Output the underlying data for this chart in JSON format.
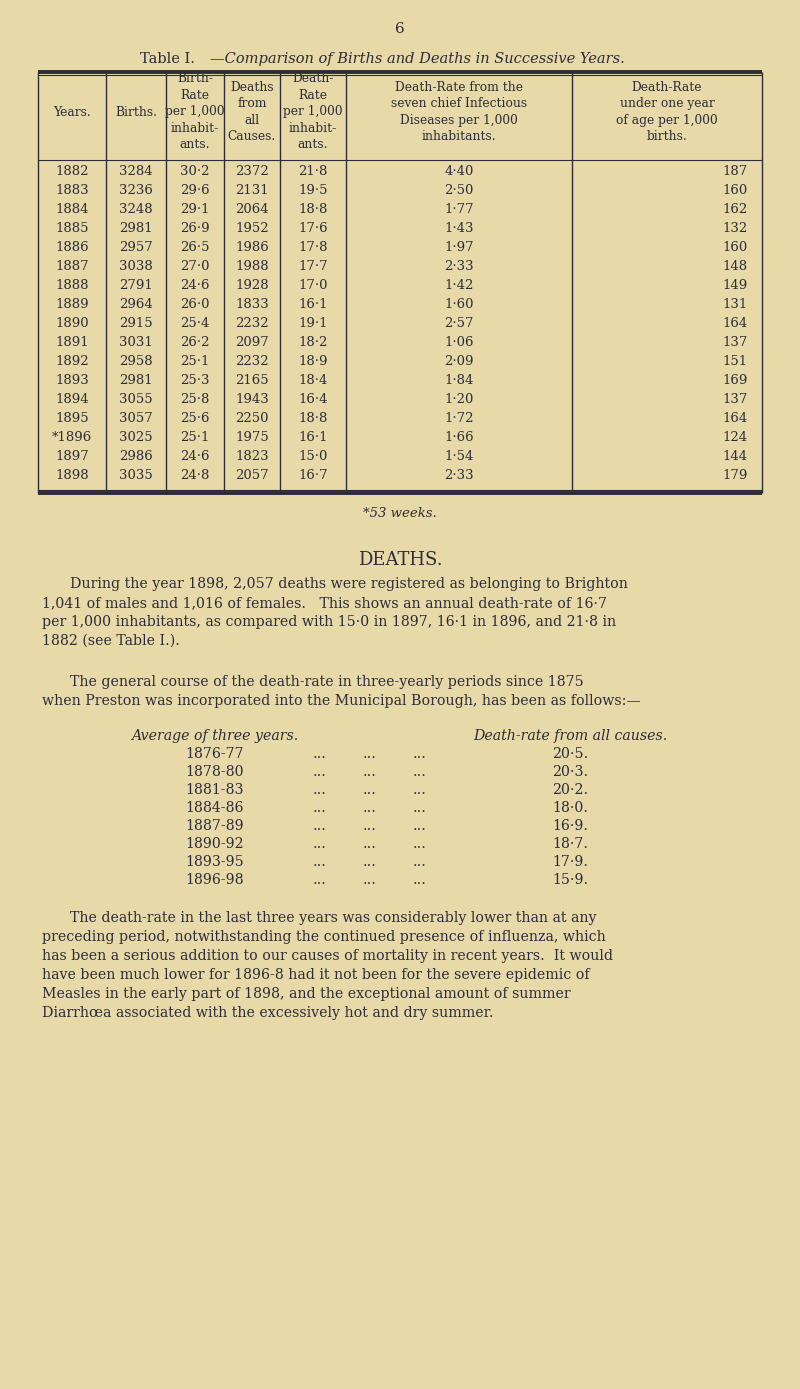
{
  "bg_color": "#e8d9a8",
  "text_color": "#2c2c3a",
  "page_number": "6",
  "table_title_roman": "Table I.",
  "table_title_italic": "—Comparison of Births and Deaths in Successive Years.",
  "col_headers": [
    "Years.",
    "Births.",
    "Birth-\nRate\nper 1,000\ninhabit-\nants.",
    "Deaths\nfrom\nall\nCauses.",
    "Death-\nRate\nper 1,000\ninhabit-\nants.",
    "Death-Rate from the\nseven chief Infectious\nDiseases per 1,000\ninhabitants.",
    "Death-Rate\nunder one year\nof age per 1,000\nbirths."
  ],
  "table_data": [
    [
      "1882",
      "3284",
      "30·2",
      "2372",
      "21·8",
      "4·40",
      "187"
    ],
    [
      "1883",
      "3236",
      "29·6",
      "2131",
      "19·5",
      "2·50",
      "160"
    ],
    [
      "1884",
      "3248",
      "29·1",
      "2064",
      "18·8",
      "1·77",
      "162"
    ],
    [
      "1885",
      "2981",
      "26·9",
      "1952",
      "17·6",
      "1·43",
      "132"
    ],
    [
      "1886",
      "2957",
      "26·5",
      "1986",
      "17·8",
      "1·97",
      "160"
    ],
    [
      "1887",
      "3038",
      "27·0",
      "1988",
      "17·7",
      "2·33",
      "148"
    ],
    [
      "1888",
      "2791",
      "24·6",
      "1928",
      "17·0",
      "1·42",
      "149"
    ],
    [
      "1889",
      "2964",
      "26·0",
      "1833",
      "16·1",
      "1·60",
      "131"
    ],
    [
      "1890",
      "2915",
      "25·4",
      "2232",
      "19·1",
      "2·57",
      "164"
    ],
    [
      "1891",
      "3031",
      "26·2",
      "2097",
      "18·2",
      "1·06",
      "137"
    ],
    [
      "1892",
      "2958",
      "25·1",
      "2232",
      "18·9",
      "2·09",
      "151"
    ],
    [
      "1893",
      "2981",
      "25·3",
      "2165",
      "18·4",
      "1·84",
      "169"
    ],
    [
      "1894",
      "3055",
      "25·8",
      "1943",
      "16·4",
      "1·20",
      "137"
    ],
    [
      "1895",
      "3057",
      "25·6",
      "2250",
      "18·8",
      "1·72",
      "164"
    ],
    [
      "*1896",
      "3025",
      "25·1",
      "1975",
      "16·1",
      "1·66",
      "124"
    ],
    [
      "1897",
      "2986",
      "24·6",
      "1823",
      "15·0",
      "1·54",
      "144"
    ],
    [
      "1898",
      "3035",
      "24·8",
      "2057",
      "16·7",
      "2·33",
      "179"
    ]
  ],
  "footnote": "*53 weeks.",
  "section_title": "DEATHS.",
  "three_year_label": "Average of three years.",
  "three_year_dr_label": "Death-rate from all causes.",
  "three_year_data": [
    [
      "1876-77",
      "20·5."
    ],
    [
      "1878-80",
      "20·3."
    ],
    [
      "1881-83",
      "20·2."
    ],
    [
      "1884-86",
      "18·0."
    ],
    [
      "1887-89",
      "16·9."
    ],
    [
      "1890-92",
      "18·7."
    ],
    [
      "1893-95",
      "17·9."
    ],
    [
      "1896-98",
      "15·9."
    ]
  ]
}
